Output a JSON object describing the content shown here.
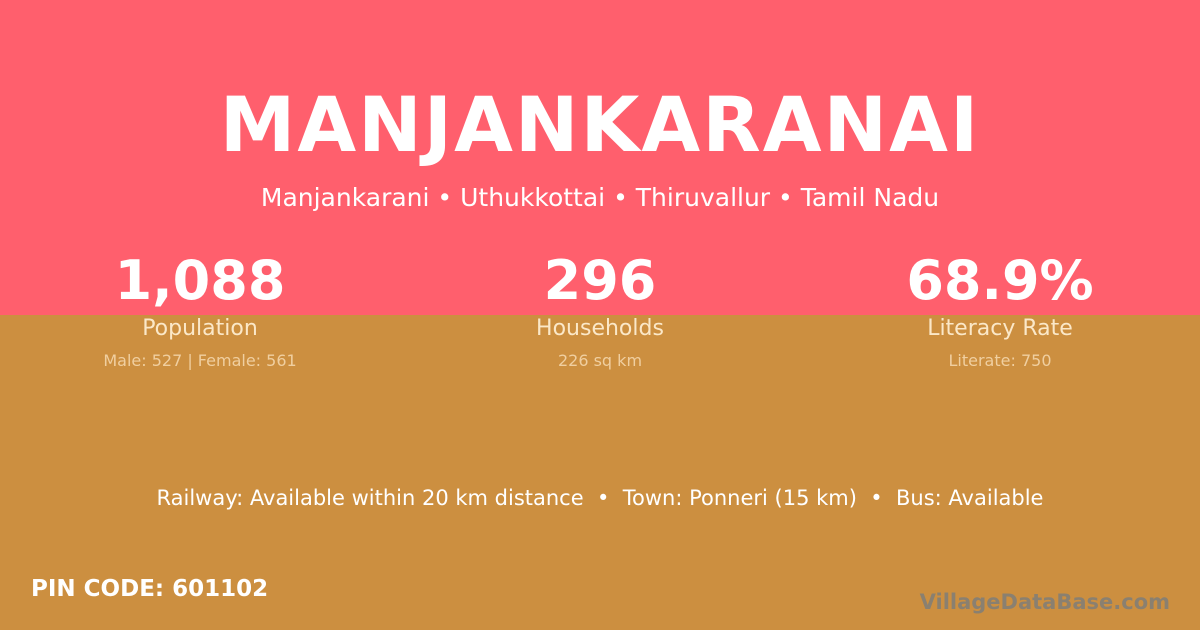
{
  "colors": {
    "top_bg": "#ff5f6d",
    "bottom_bg": "#cc8f40"
  },
  "title": "MANJANKARANAI",
  "subtitle": "Manjankarani • Uthukkottai • Thiruvallur • Tamil Nadu",
  "stats": [
    {
      "value": "1,088",
      "label": "Population",
      "detail": "Male: 527 | Female: 561"
    },
    {
      "value": "296",
      "label": "Households",
      "detail": "226 sq km"
    },
    {
      "value": "68.9%",
      "label": "Literacy Rate",
      "detail": "Literate: 750"
    }
  ],
  "connectivity": "Railway: Available within 20 km distance  •  Town: Ponneri (15 km)  •  Bus: Available",
  "pin_code": "PIN CODE: 601102",
  "watermark": "VillageDataBase.com"
}
